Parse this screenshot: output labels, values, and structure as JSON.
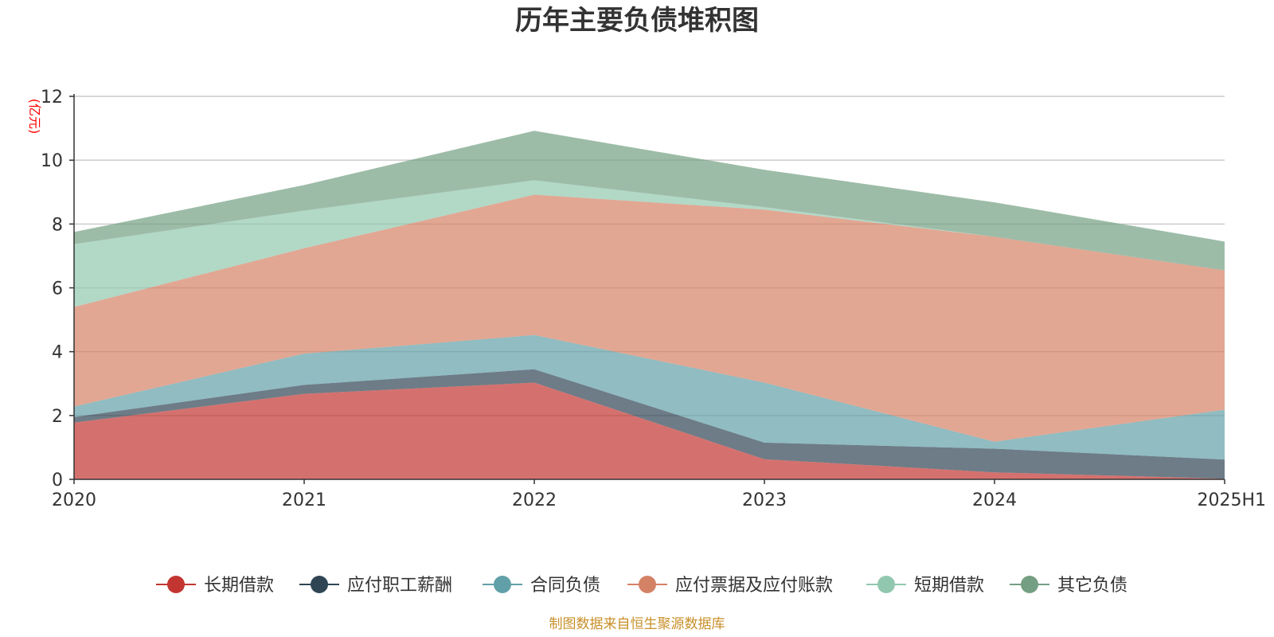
{
  "chart_data": {
    "type": "area",
    "stacked": true,
    "title": "历年主要负债堆积图",
    "ylabel": "(亿元)",
    "categories": [
      "2020",
      "2021",
      "2022",
      "2023",
      "2024",
      "2025H1"
    ],
    "ylim": [
      0,
      12
    ],
    "yticks": [
      0,
      2,
      4,
      6,
      8,
      10,
      12
    ],
    "grid": true,
    "legend_position": "bottom",
    "series": [
      {
        "name": "长期借款",
        "color": "#c23531",
        "values": [
          1.78,
          2.68,
          3.03,
          0.63,
          0.22,
          0.02
        ]
      },
      {
        "name": "应付职工薪酬",
        "color": "#2f4554",
        "values": [
          0.17,
          0.28,
          0.42,
          0.52,
          0.74,
          0.6
        ]
      },
      {
        "name": "合同负债",
        "color": "#61a0a8",
        "values": [
          0.33,
          0.98,
          1.07,
          1.88,
          0.22,
          1.56
        ]
      },
      {
        "name": "应付票据及应付账款",
        "color": "#d48265",
        "values": [
          3.12,
          3.3,
          4.4,
          5.42,
          6.42,
          4.37
        ]
      },
      {
        "name": "短期借款",
        "color": "#91c7ae",
        "values": [
          1.97,
          1.18,
          0.45,
          0.08,
          0.0,
          0.0
        ]
      },
      {
        "name": "其它负债",
        "color": "#749f83",
        "values": [
          0.38,
          0.8,
          1.55,
          1.17,
          1.08,
          0.9
        ]
      }
    ]
  },
  "footer": "制图数据来自恒生聚源数据库"
}
